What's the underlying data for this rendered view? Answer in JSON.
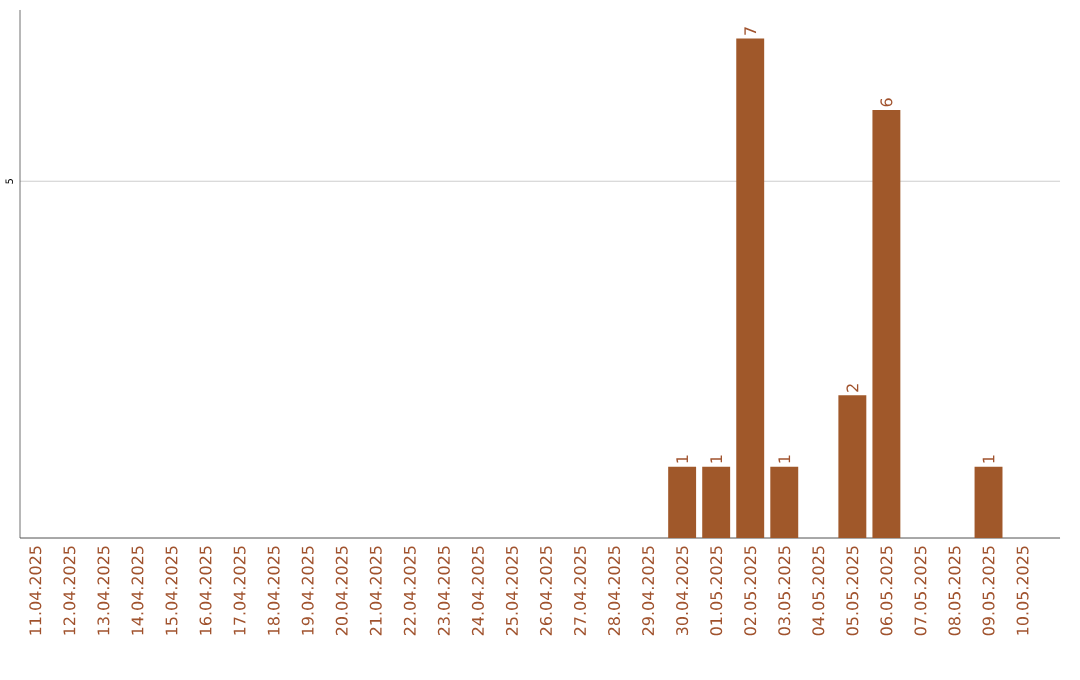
{
  "chart_data": {
    "type": "bar",
    "categories": [
      "11.04.2025",
      "12.04.2025",
      "13.04.2025",
      "14.04.2025",
      "15.04.2025",
      "16.04.2025",
      "17.04.2025",
      "18.04.2025",
      "19.04.2025",
      "20.04.2025",
      "21.04.2025",
      "22.04.2025",
      "23.04.2025",
      "24.04.2025",
      "25.04.2025",
      "26.04.2025",
      "27.04.2025",
      "28.04.2025",
      "29.04.2025",
      "30.04.2025",
      "01.05.2025",
      "02.05.2025",
      "03.05.2025",
      "04.05.2025",
      "05.05.2025",
      "06.05.2025",
      "07.05.2025",
      "08.05.2025",
      "09.05.2025",
      "10.05.2025"
    ],
    "values": [
      null,
      null,
      null,
      null,
      null,
      null,
      null,
      null,
      null,
      null,
      null,
      null,
      null,
      null,
      null,
      null,
      null,
      null,
      null,
      1,
      1,
      7,
      1,
      null,
      2,
      6,
      null,
      null,
      1,
      null
    ],
    "data_labels": true,
    "color": "#a0582a",
    "ylim": [
      0,
      7.4
    ],
    "yticks": [
      {
        "value": 0,
        "label": null
      },
      5
    ],
    "grid": "y"
  }
}
